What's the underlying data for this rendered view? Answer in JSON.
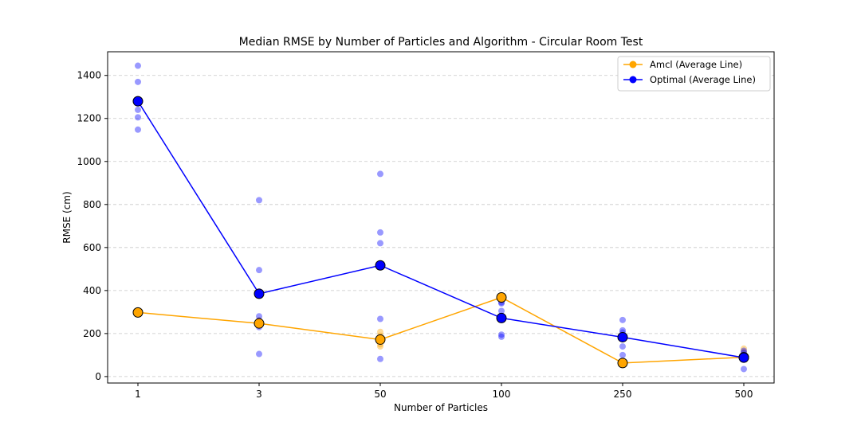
{
  "chart_data": {
    "type": "line",
    "title": "Median RMSE by Number of Particles and Algorithm - Circular Room Test",
    "xlabel": "Number of Particles",
    "ylabel": "RMSE (cm)",
    "categories": [
      "1",
      "3",
      "50",
      "100",
      "250",
      "500"
    ],
    "ylim": [
      -30,
      1510
    ],
    "yticks": [
      0,
      200,
      400,
      600,
      800,
      1000,
      1200,
      1400
    ],
    "grid": "y-dashed",
    "legend_position": "top-right",
    "series": [
      {
        "name": "Amcl (Average Line)",
        "color": "#FFA500",
        "values": [
          298,
          247,
          172,
          368,
          63,
          90
        ],
        "points": [
          [
            298,
            298,
            299,
            297,
            300
          ],
          [
            246,
            250,
            262,
            245,
            239
          ],
          [
            140,
            150,
            165,
            190,
            208
          ],
          [
            355,
            365,
            370,
            373,
            366
          ],
          [
            55,
            60,
            65,
            68,
            62
          ],
          [
            80,
            90,
            100,
            115,
            130
          ]
        ]
      },
      {
        "name": "Optimal (Average Line)",
        "color": "#0000FF",
        "values": [
          1280,
          385,
          517,
          272,
          183,
          88
        ],
        "points": [
          [
            1445,
            1370,
            1280,
            1240,
            1205,
            1148
          ],
          [
            820,
            495,
            280,
            260,
            230,
            105
          ],
          [
            942,
            670,
            620,
            268,
            82
          ],
          [
            345,
            340,
            305,
            195,
            185
          ],
          [
            263,
            215,
            205,
            140,
            100,
            70
          ],
          [
            120,
            110,
            95,
            85,
            35
          ]
        ]
      }
    ]
  }
}
